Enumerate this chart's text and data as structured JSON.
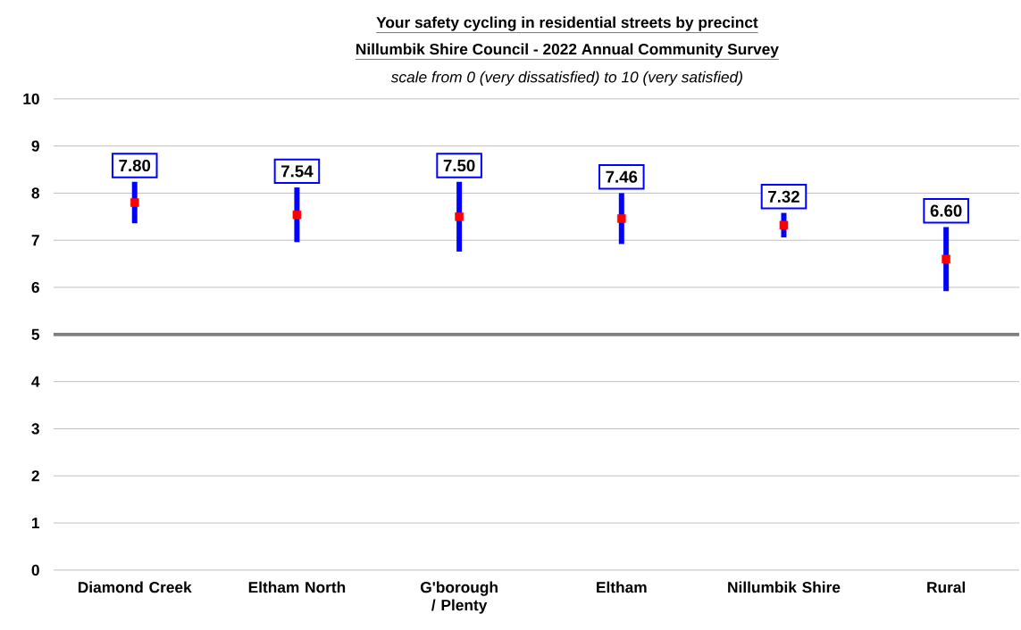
{
  "chart_data": {
    "type": "scatter",
    "title": "Your safety cycling in residential streets by precinct",
    "subtitle": "Nillumbik Shire Council - 2022 Annual Community Survey",
    "annotations": [
      "scale from 0 (very dissatisfied) to 10 (very satisfied)"
    ],
    "categories": [
      "Diamond Creek",
      "Eltham North",
      "G'borough / Plenty",
      "Eltham",
      "Nillumbik Shire",
      "Rural"
    ],
    "series": [
      {
        "color": "#ff0000",
        "values": [
          7.8,
          7.54,
          7.5,
          7.46,
          7.32,
          6.6
        ],
        "errors": [
          0.44,
          0.58,
          0.74,
          0.54,
          0.26,
          0.68
        ],
        "value_labels": [
          "7.80",
          "7.54",
          "7.50",
          "7.46",
          "7.32",
          "6.60"
        ]
      }
    ],
    "marker": "square",
    "ylim": [
      0,
      10
    ],
    "yticks": [
      0,
      1,
      2,
      3,
      4,
      5,
      6,
      7,
      8,
      9,
      10
    ],
    "grid": "y",
    "ref_lines": [
      {
        "axis": "y",
        "value": 5,
        "color": "#808080"
      }
    ]
  }
}
